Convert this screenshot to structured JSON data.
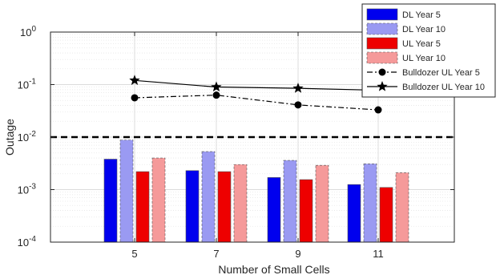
{
  "chart_data": {
    "type": "bar",
    "xlabel": "Number of Small Cells",
    "ylabel": "Outage",
    "y_scale": "log",
    "ylim": [
      0.0001,
      1
    ],
    "y_ticks": [
      {
        "value": 0.0001,
        "base": "10",
        "exp": "-4"
      },
      {
        "value": 0.001,
        "base": "10",
        "exp": "-3"
      },
      {
        "value": 0.01,
        "base": "10",
        "exp": "-2"
      },
      {
        "value": 0.1,
        "base": "10",
        "exp": "-1"
      },
      {
        "value": 1,
        "base": "10",
        "exp": "0"
      }
    ],
    "categories": [
      "5",
      "7",
      "9",
      "11"
    ],
    "grid": true,
    "legend_position": "top-right",
    "threshold": {
      "value": 0.01,
      "style": "dashed",
      "color": "#000000"
    },
    "bar_series": [
      {
        "name": "DL Year 5",
        "color": "#0000ee",
        "edge": "solid",
        "values": [
          0.0038,
          0.0023,
          0.0017,
          0.00125
        ]
      },
      {
        "name": "DL Year 10",
        "color": "#9a9af2",
        "edge": "dashed",
        "values": [
          0.0088,
          0.0053,
          0.0036,
          0.0031
        ]
      },
      {
        "name": "UL Year 5",
        "color": "#ee0000",
        "edge": "solid",
        "values": [
          0.0022,
          0.0022,
          0.00155,
          0.0011
        ]
      },
      {
        "name": "UL Year 10",
        "color": "#f59a9a",
        "edge": "dashed",
        "values": [
          0.004,
          0.003,
          0.0029,
          0.0021
        ]
      }
    ],
    "line_series": [
      {
        "name": "Bulldozer UL Year 5",
        "marker": "circle",
        "line_style": "dash-dot",
        "color": "#000000",
        "values": [
          0.056,
          0.063,
          0.041,
          0.033
        ]
      },
      {
        "name": "Bulldozer UL Year 10",
        "marker": "star",
        "line_style": "solid",
        "color": "#000000",
        "values": [
          0.12,
          0.09,
          0.085,
          0.078
        ]
      }
    ]
  }
}
